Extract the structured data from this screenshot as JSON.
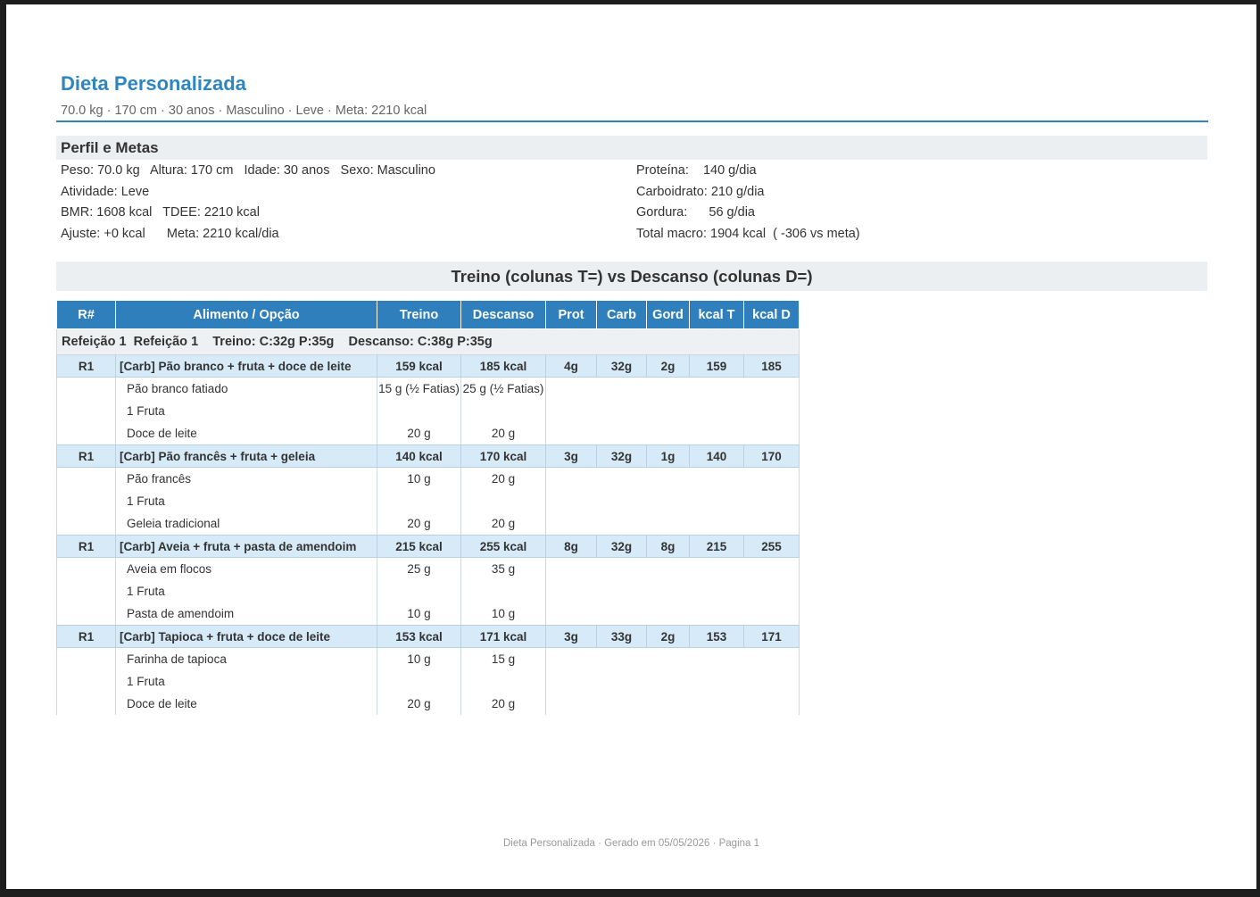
{
  "header": {
    "title": "Dieta Personalizada",
    "subtitle": "70.0 kg · 170 cm · 30 anos · Masculino · Leve · Meta: 2210 kcal"
  },
  "profile": {
    "section_title": "Perfil e Metas",
    "left": [
      "Peso: 70.0 kg   Altura: 170 cm   Idade: 30 anos   Sexo: Masculino",
      "Atividade: Leve",
      "BMR: 1608 kcal   TDEE: 2210 kcal",
      "Ajuste: +0 kcal      Meta: 2210 kcal/dia"
    ],
    "right": [
      "Proteína:    140 g/dia",
      "Carboidrato: 210 g/dia",
      "Gordura:      56 g/dia",
      "Total macro: 1904 kcal  ( -306 vs meta)"
    ]
  },
  "band_title": "Treino (colunas T=) vs Descanso (colunas D=)",
  "table": {
    "columns": [
      "R#",
      "Alimento / Opção",
      "Treino",
      "Descanso",
      "Prot",
      "Carb",
      "Gord",
      "kcal T",
      "kcal D"
    ],
    "meal_row": {
      "label": "Refeição 1  Refeição 1    Treino: C:32g P:35g    Descanso: C:38g P:35g"
    },
    "options": [
      {
        "r": "R1",
        "name": "[Carb] Pão branco + fruta + doce de leite",
        "treino": "159 kcal",
        "descanso": "185 kcal",
        "prot": "4g",
        "carb": "32g",
        "gord": "2g",
        "kcal_t": "159",
        "kcal_d": "185",
        "items": [
          {
            "name": "Pão branco fatiado",
            "treino": "15 g (½ Fatias)",
            "descanso": "25 g (½ Fatias)"
          },
          {
            "name": "1 Fruta",
            "treino": "",
            "descanso": ""
          },
          {
            "name": "Doce de leite",
            "treino": "20 g",
            "descanso": "20 g"
          }
        ]
      },
      {
        "r": "R1",
        "name": "[Carb] Pão francês + fruta + geleia",
        "treino": "140 kcal",
        "descanso": "170 kcal",
        "prot": "3g",
        "carb": "32g",
        "gord": "1g",
        "kcal_t": "140",
        "kcal_d": "170",
        "items": [
          {
            "name": "Pão francês",
            "treino": "10 g",
            "descanso": "20 g"
          },
          {
            "name": "1 Fruta",
            "treino": "",
            "descanso": ""
          },
          {
            "name": "Geleia tradicional",
            "treino": "20 g",
            "descanso": "20 g"
          }
        ]
      },
      {
        "r": "R1",
        "name": "[Carb] Aveia + fruta + pasta de amendoim",
        "treino": "215 kcal",
        "descanso": "255 kcal",
        "prot": "8g",
        "carb": "32g",
        "gord": "8g",
        "kcal_t": "215",
        "kcal_d": "255",
        "items": [
          {
            "name": "Aveia em flocos",
            "treino": "25 g",
            "descanso": "35 g"
          },
          {
            "name": "1 Fruta",
            "treino": "",
            "descanso": ""
          },
          {
            "name": "Pasta de amendoim",
            "treino": "10 g",
            "descanso": "10 g"
          }
        ]
      },
      {
        "r": "R1",
        "name": "[Carb] Tapioca + fruta + doce de leite",
        "treino": "153 kcal",
        "descanso": "171 kcal",
        "prot": "3g",
        "carb": "33g",
        "gord": "2g",
        "kcal_t": "153",
        "kcal_d": "171",
        "items": [
          {
            "name": "Farinha de tapioca",
            "treino": "10 g",
            "descanso": "15 g"
          },
          {
            "name": "1 Fruta",
            "treino": "",
            "descanso": ""
          },
          {
            "name": "Doce de leite",
            "treino": "20 g",
            "descanso": "20 g"
          }
        ]
      }
    ]
  },
  "footer": "Dieta Personalizada · Gerado em 05/05/2026 · Pagina 1"
}
